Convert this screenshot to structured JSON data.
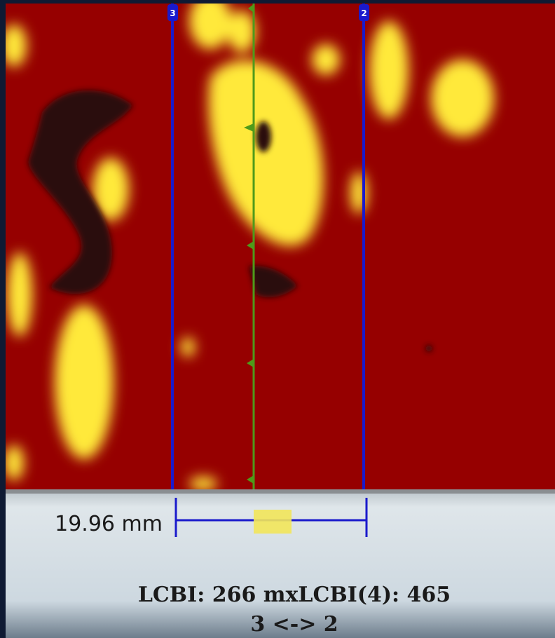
{
  "markers": [
    {
      "label": "3"
    },
    {
      "label": "2"
    }
  ],
  "measurement": "19.96 mm",
  "info": {
    "lcbi_line": "LCBI: 266 mxLCBI(4): 465",
    "range": "3 <-> 2"
  }
}
